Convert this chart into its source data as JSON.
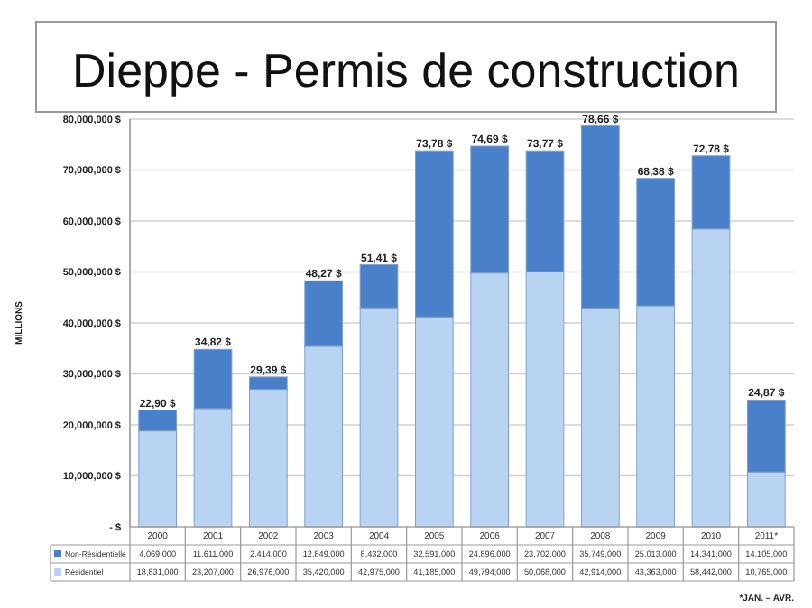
{
  "chart_data": {
    "type": "bar",
    "stacked": true,
    "title": "Dieppe - Permis de construction",
    "ylabel": "MILLIONS",
    "categories": [
      "2000",
      "2001",
      "2002",
      "2003",
      "2004",
      "2005",
      "2006",
      "2007",
      "2008",
      "2009",
      "2010",
      "2011*"
    ],
    "series": [
      {
        "name": "Résidentiel",
        "color": "#b9d3f3",
        "values": [
          18831000,
          23207000,
          26976000,
          35420000,
          42975000,
          41185000,
          49794000,
          50068000,
          42914000,
          43363000,
          58442000,
          10765000
        ],
        "value_labels": [
          "18,831,000",
          "23,207,000",
          "26,976,000",
          "35,420,000",
          "42,975,000",
          "41,185,000",
          "49,794,000",
          "50,068,000",
          "42,914,000",
          "43,363,000",
          "58,442,000",
          "10,765,000"
        ]
      },
      {
        "name": "Non-Résidentielle",
        "color": "#4a80c9",
        "values": [
          4069000,
          11611000,
          2414000,
          12849000,
          8432000,
          32591000,
          24896000,
          23702000,
          35749000,
          25013000,
          14341000,
          14105000
        ],
        "value_labels": [
          "4,069,000",
          "11,611,000",
          "2,414,000",
          "12,849,000",
          "8,432,000",
          "32,591,000",
          "24,896,000",
          "23,702,000",
          "35,749,000",
          "25,013,000",
          "14,341,000",
          "14,105,000"
        ]
      }
    ],
    "ylim": [
      0,
      80000000
    ],
    "yticks": [
      {
        "value": 0,
        "label": "-   $"
      },
      {
        "value": 10000000,
        "label": "10,000,000 $"
      },
      {
        "value": 20000000,
        "label": "20,000,000 $"
      },
      {
        "value": 30000000,
        "label": "30,000,000 $"
      },
      {
        "value": 40000000,
        "label": "40,000,000 $"
      },
      {
        "value": 50000000,
        "label": "50,000,000 $"
      },
      {
        "value": 60000000,
        "label": "60,000,000 $"
      },
      {
        "value": 70000000,
        "label": "70,000,000 $"
      },
      {
        "value": 80000000,
        "label": "80,000,000 $"
      }
    ],
    "grid": "y",
    "legend": "bottom",
    "annotations": [
      "*JAN. – AVR.",
      {
        "text": "22,90 $",
        "x": "2000",
        "y": 22900000
      },
      {
        "text": "34,82 $",
        "x": "2001",
        "y": 34818000
      },
      {
        "text": "29,39 $",
        "x": "2002",
        "y": 29390000
      },
      {
        "text": "48,27 $",
        "x": "2003",
        "y": 48269000
      },
      {
        "text": "51,41 $",
        "x": "2004",
        "y": 51407000
      },
      {
        "text": "73,78 $",
        "x": "2005",
        "y": 73776000
      },
      {
        "text": "74,69 $",
        "x": "2006",
        "y": 74690000
      },
      {
        "text": "73,77 $",
        "x": "2007",
        "y": 73770000
      },
      {
        "text": "78,66 $",
        "x": "2008",
        "y": 78663000
      },
      {
        "text": "68,38 $",
        "x": "2009",
        "y": 68376000
      },
      {
        "text": "72,78 $",
        "x": "2010",
        "y": 72783000
      },
      {
        "text": "24,87 $",
        "x": "2011*",
        "y": 24870000
      }
    ]
  }
}
